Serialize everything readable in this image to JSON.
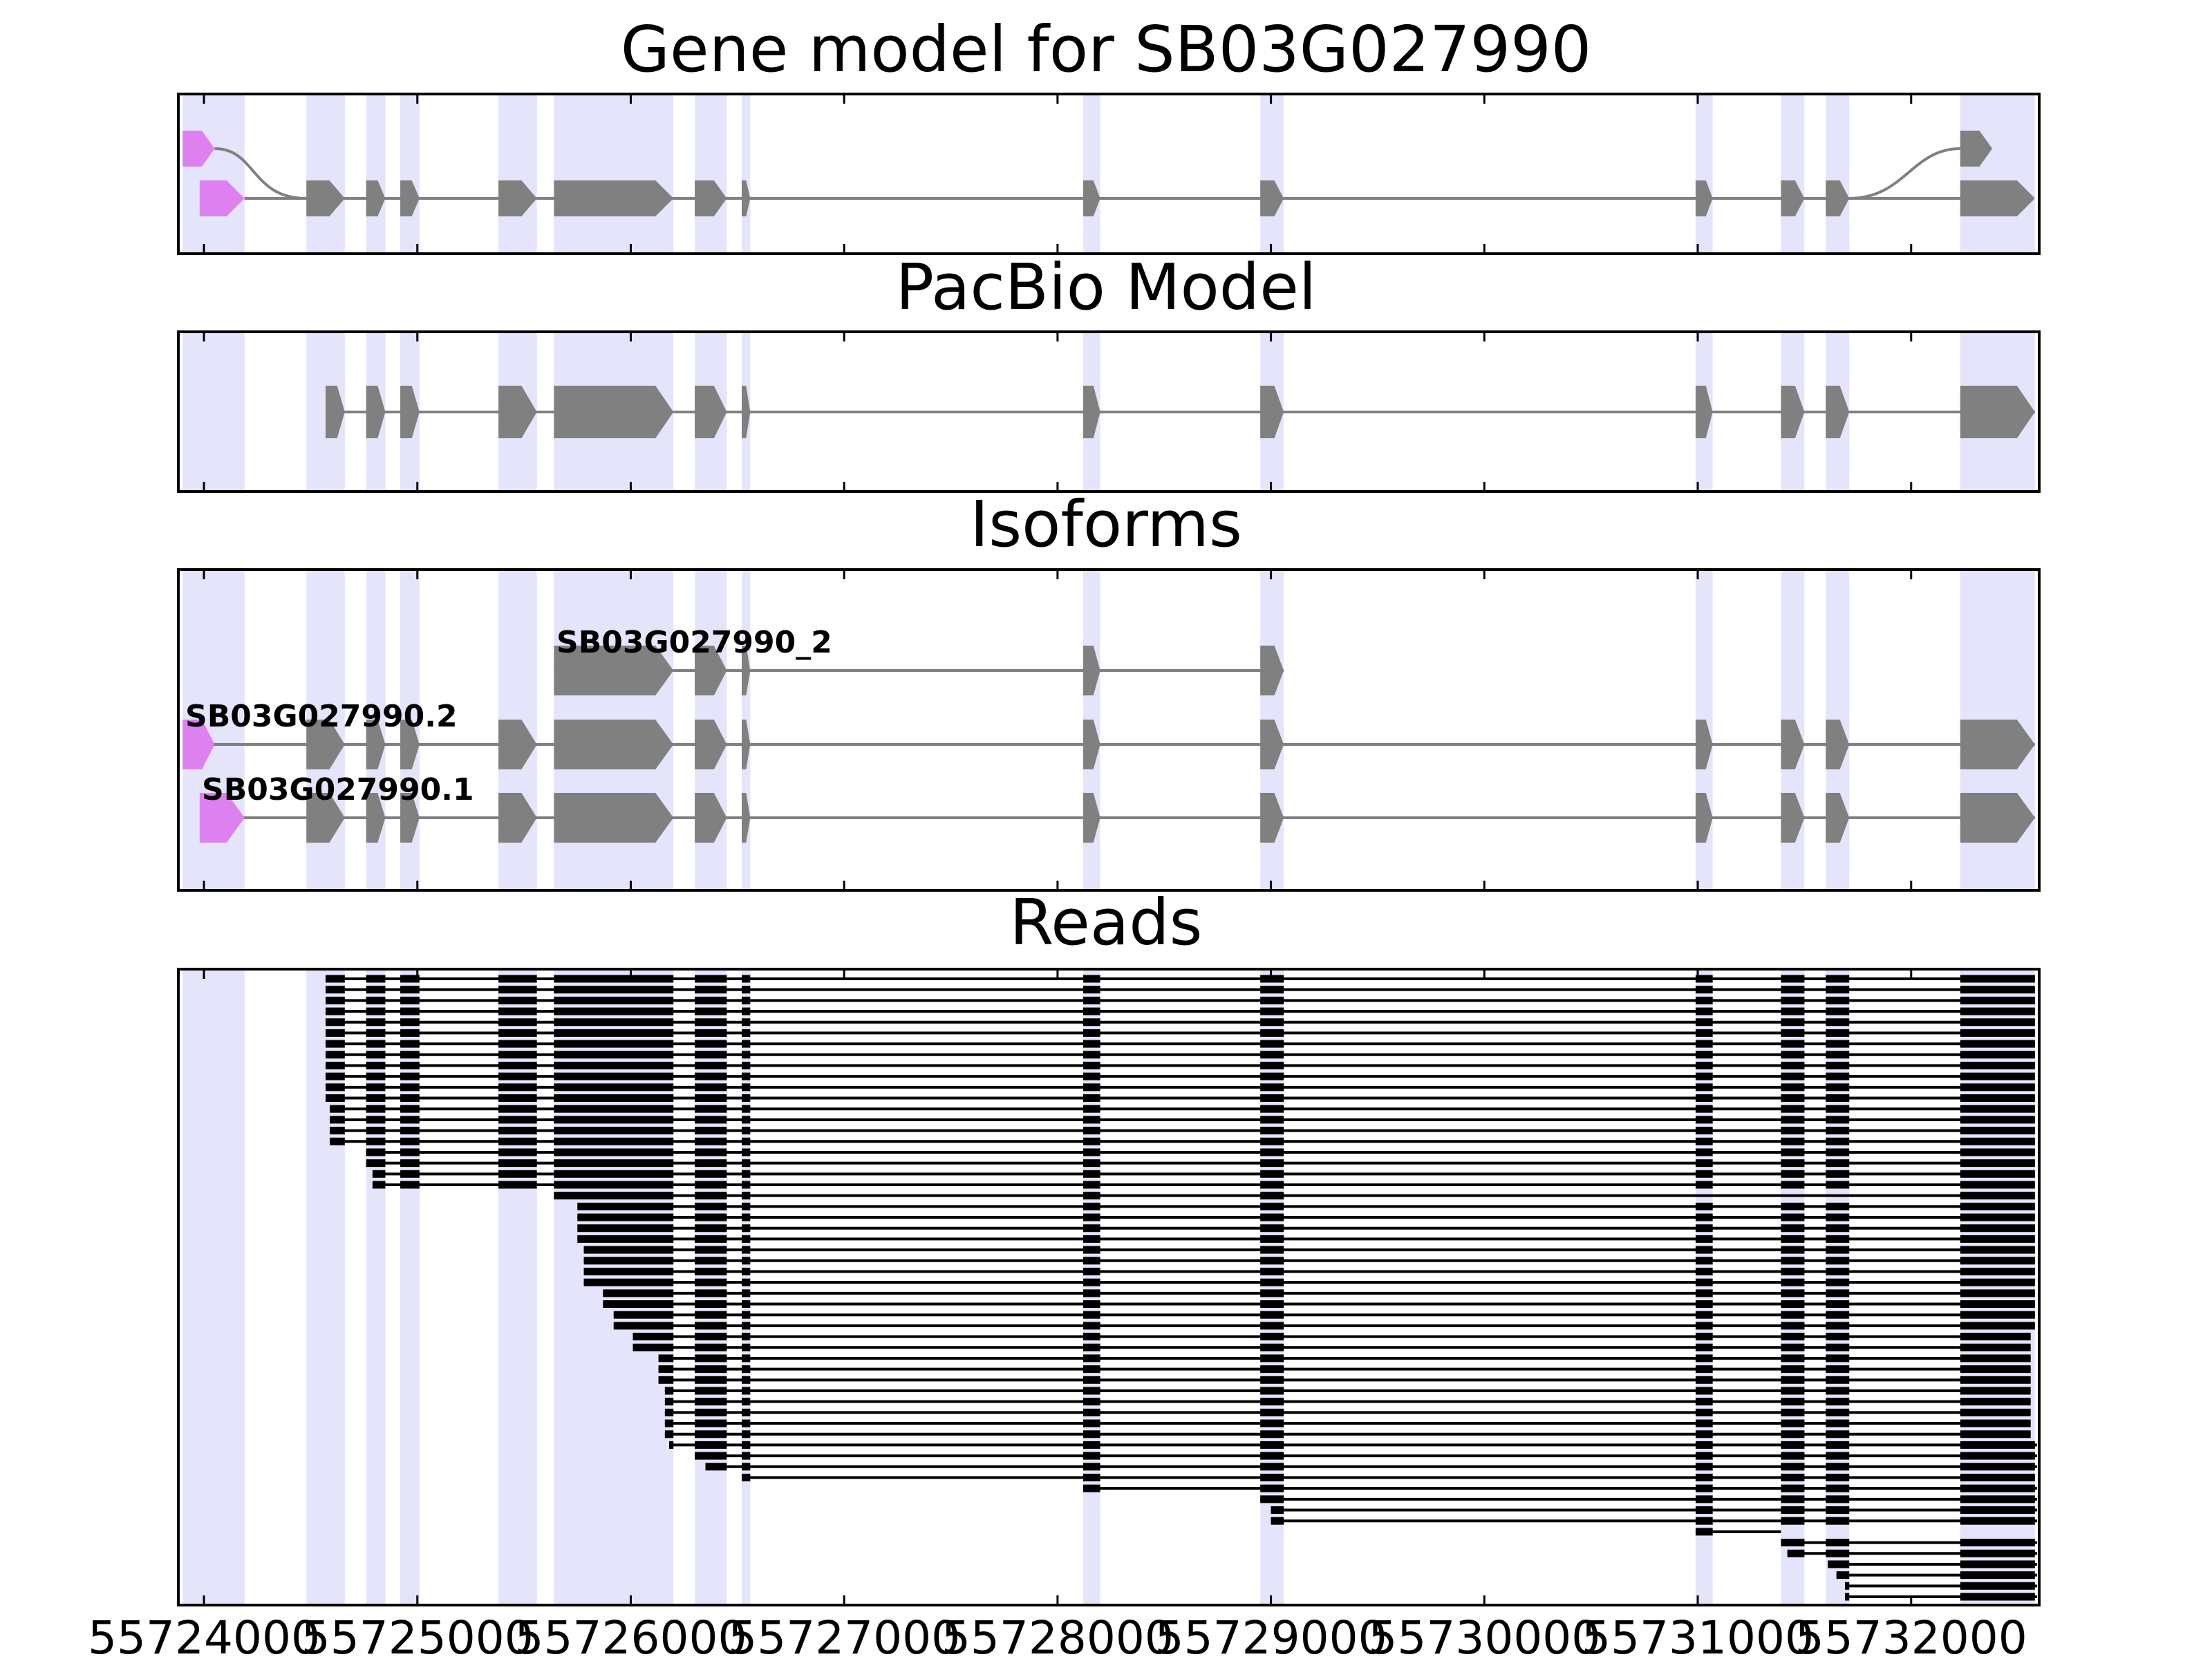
{
  "panels": [
    {
      "key": "gene_model",
      "title": "Gene model for SB03G027990"
    },
    {
      "key": "pacbio",
      "title": "PacBio Model"
    },
    {
      "key": "isoforms",
      "title": "Isoforms"
    },
    {
      "key": "reads",
      "title": "Reads"
    }
  ],
  "colors": {
    "background": "#ffffff",
    "exon_shading": "#e4e4fb",
    "gene_exon": "#808080",
    "utr_exon": "#dd80f0",
    "read": "#000000",
    "axis": "#000000"
  },
  "x_axis": {
    "range": [
      55723880,
      55732600
    ],
    "ticks": [
      "55724000",
      "55725000",
      "55726000",
      "55727000",
      "55728000",
      "55729000",
      "55730000",
      "55731000",
      "55732000"
    ]
  },
  "shaded_exons": [
    [
      55723900,
      55724190
    ],
    [
      55724480,
      55724660
    ],
    [
      55724760,
      55724850
    ],
    [
      55724920,
      55725010
    ],
    [
      55725380,
      55725560
    ],
    [
      55725640,
      55726200
    ],
    [
      55726300,
      55726450
    ],
    [
      55726520,
      55726560
    ],
    [
      55728120,
      55728200
    ],
    [
      55728950,
      55729060
    ],
    [
      55730990,
      55731070
    ],
    [
      55731390,
      55731500
    ],
    [
      55731600,
      55731710
    ],
    [
      55732230,
      55732580
    ]
  ],
  "gene_model": {
    "transcripts": [
      {
        "exons": [
          {
            "s": 55723900,
            "e": 55724050,
            "utr": true
          },
          {
            "s": 55732230,
            "e": 55732380
          }
        ]
      },
      {
        "exons": [
          {
            "s": 55723980,
            "e": 55724190,
            "utr": true
          },
          {
            "s": 55724480,
            "e": 55724660
          },
          {
            "s": 55724760,
            "e": 55724850
          },
          {
            "s": 55724920,
            "e": 55725010
          },
          {
            "s": 55725380,
            "e": 55725560
          },
          {
            "s": 55725640,
            "e": 55726200
          },
          {
            "s": 55726300,
            "e": 55726450
          },
          {
            "s": 55726520,
            "e": 55726560
          },
          {
            "s": 55728120,
            "e": 55728200
          },
          {
            "s": 55728950,
            "e": 55729060
          },
          {
            "s": 55730990,
            "e": 55731070
          },
          {
            "s": 55731390,
            "e": 55731500
          },
          {
            "s": 55731600,
            "e": 55731710
          },
          {
            "s": 55732230,
            "e": 55732580
          }
        ]
      }
    ]
  },
  "pacbio": {
    "exons": [
      [
        55724570,
        55724660
      ],
      [
        55724760,
        55724850
      ],
      [
        55724920,
        55725010
      ],
      [
        55725380,
        55725560
      ],
      [
        55725640,
        55726200
      ],
      [
        55726300,
        55726450
      ],
      [
        55726520,
        55726560
      ],
      [
        55728120,
        55728200
      ],
      [
        55728950,
        55729060
      ],
      [
        55730990,
        55731070
      ],
      [
        55731390,
        55731500
      ],
      [
        55731600,
        55731710
      ],
      [
        55732230,
        55732580
      ]
    ]
  },
  "isoforms": [
    {
      "label": "SB03G027990_2",
      "exons": [
        [
          55725640,
          55726200
        ],
        [
          55726300,
          55726450
        ],
        [
          55726520,
          55726560
        ],
        [
          55728120,
          55728200
        ],
        [
          55728950,
          55729060
        ]
      ]
    },
    {
      "label": "SB03G027990.2",
      "utr": [
        55723900,
        55724050
      ],
      "exons": [
        [
          55724480,
          55724660
        ],
        [
          55724760,
          55724850
        ],
        [
          55724920,
          55725010
        ],
        [
          55725380,
          55725560
        ],
        [
          55725640,
          55726200
        ],
        [
          55726300,
          55726450
        ],
        [
          55726520,
          55726560
        ],
        [
          55728120,
          55728200
        ],
        [
          55728950,
          55729060
        ],
        [
          55730990,
          55731070
        ],
        [
          55731390,
          55731500
        ],
        [
          55731600,
          55731710
        ],
        [
          55732230,
          55732580
        ]
      ]
    },
    {
      "label": "SB03G027990.1",
      "utr": [
        55723980,
        55724190
      ],
      "exons": [
        [
          55724480,
          55724660
        ],
        [
          55724760,
          55724850
        ],
        [
          55724920,
          55725010
        ],
        [
          55725380,
          55725560
        ],
        [
          55725640,
          55726200
        ],
        [
          55726300,
          55726450
        ],
        [
          55726520,
          55726560
        ],
        [
          55728120,
          55728200
        ],
        [
          55728950,
          55729060
        ],
        [
          55730990,
          55731070
        ],
        [
          55731390,
          55731500
        ],
        [
          55731600,
          55731710
        ],
        [
          55732230,
          55732580
        ]
      ]
    }
  ],
  "reads": {
    "groups": [
      {
        "count": 12,
        "start": 55724570,
        "end": 55732580,
        "first_exon_end": 55724660
      },
      {
        "count": 4,
        "start": 55724590,
        "end": 55732580,
        "first_exon_end": 55724660
      },
      {
        "count": 2,
        "start": 55724760,
        "end": 55732580,
        "first_exon_end": 55724850
      },
      {
        "count": 2,
        "start": 55724790,
        "end": 55732580,
        "first_exon_end": 55724850
      },
      {
        "count": 1,
        "start": 55725640,
        "end": 55732580,
        "first_exon_end": 55726200,
        "skip_after": 55729060
      },
      {
        "count": 4,
        "start": 55725750,
        "end": 55732580,
        "first_exon_end": 55726200
      },
      {
        "count": 4,
        "start": 55725780,
        "end": 55732580,
        "first_exon_end": 55726200
      },
      {
        "count": 2,
        "start": 55725870,
        "end": 55732580,
        "first_exon_end": 55726200
      },
      {
        "count": 2,
        "start": 55725920,
        "end": 55732580,
        "first_exon_end": 55726200
      },
      {
        "count": 2,
        "start": 55726010,
        "end": 55732560,
        "first_exon_end": 55726200
      },
      {
        "count": 3,
        "start": 55726130,
        "end": 55732560,
        "first_exon_end": 55726200
      },
      {
        "count": 5,
        "start": 55726160,
        "end": 55732560,
        "first_exon_end": 55726200
      },
      {
        "count": 1,
        "start": 55726180,
        "end": 55732590,
        "first_exon_end": 55726200
      },
      {
        "count": 1,
        "start": 55726300,
        "end": 55732590,
        "first_exon_end": 55726450
      },
      {
        "count": 1,
        "start": 55726350,
        "end": 55732590,
        "first_exon_end": 55726450
      },
      {
        "count": 1,
        "start": 55726520,
        "end": 55732580,
        "first_exon_end": 55726560
      },
      {
        "count": 1,
        "start": 55728120,
        "end": 55732590,
        "first_exon_end": 55728200
      },
      {
        "count": 1,
        "start": 55728950,
        "end": 55732590,
        "first_exon_end": 55729060
      },
      {
        "count": 2,
        "start": 55729000,
        "end": 55732590,
        "first_exon_end": 55729060
      },
      {
        "count": 1,
        "start": 55730990,
        "end": 55731070,
        "first_exon_end": 55731070,
        "last_intron_to": 55731390
      },
      {
        "count": 1,
        "start": 55731390,
        "end": 55732590,
        "first_exon_end": 55731500
      },
      {
        "count": 1,
        "start": 55731420,
        "end": 55732590,
        "first_exon_end": 55731500
      },
      {
        "count": 1,
        "start": 55731610,
        "end": 55732590,
        "first_exon_end": 55731710
      },
      {
        "count": 1,
        "start": 55731650,
        "end": 55732590,
        "first_exon_end": 55731710
      },
      {
        "count": 2,
        "start": 55731690,
        "end": 55732590,
        "first_exon_end": 55731710
      }
    ]
  }
}
